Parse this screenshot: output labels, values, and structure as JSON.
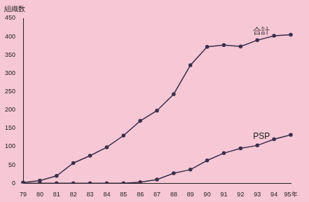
{
  "chart_data": {
    "type": "line",
    "y_label": "組織数",
    "categories": [
      "79",
      "80",
      "81",
      "82",
      "83",
      "84",
      "85",
      "86",
      "87",
      "88",
      "89",
      "90",
      "91",
      "92",
      "93",
      "94",
      "95年"
    ],
    "series": [
      {
        "name": "合計",
        "color": "#3b2f4a",
        "marker": "circle",
        "values": [
          2,
          7,
          20,
          55,
          75,
          98,
          130,
          170,
          198,
          243,
          322,
          372,
          377,
          373,
          390,
          402,
          405
        ]
      },
      {
        "name": "PSP",
        "color": "#3b2f4a",
        "marker": "circle",
        "values": [
          0,
          0,
          0,
          0,
          0,
          0,
          0,
          3,
          10,
          27,
          37,
          62,
          82,
          95,
          103,
          120,
          132
        ]
      }
    ],
    "ylim": [
      0,
      450
    ],
    "yticks": [
      0,
      50,
      100,
      150,
      200,
      250,
      300,
      350,
      400,
      450
    ],
    "grid": false
  }
}
